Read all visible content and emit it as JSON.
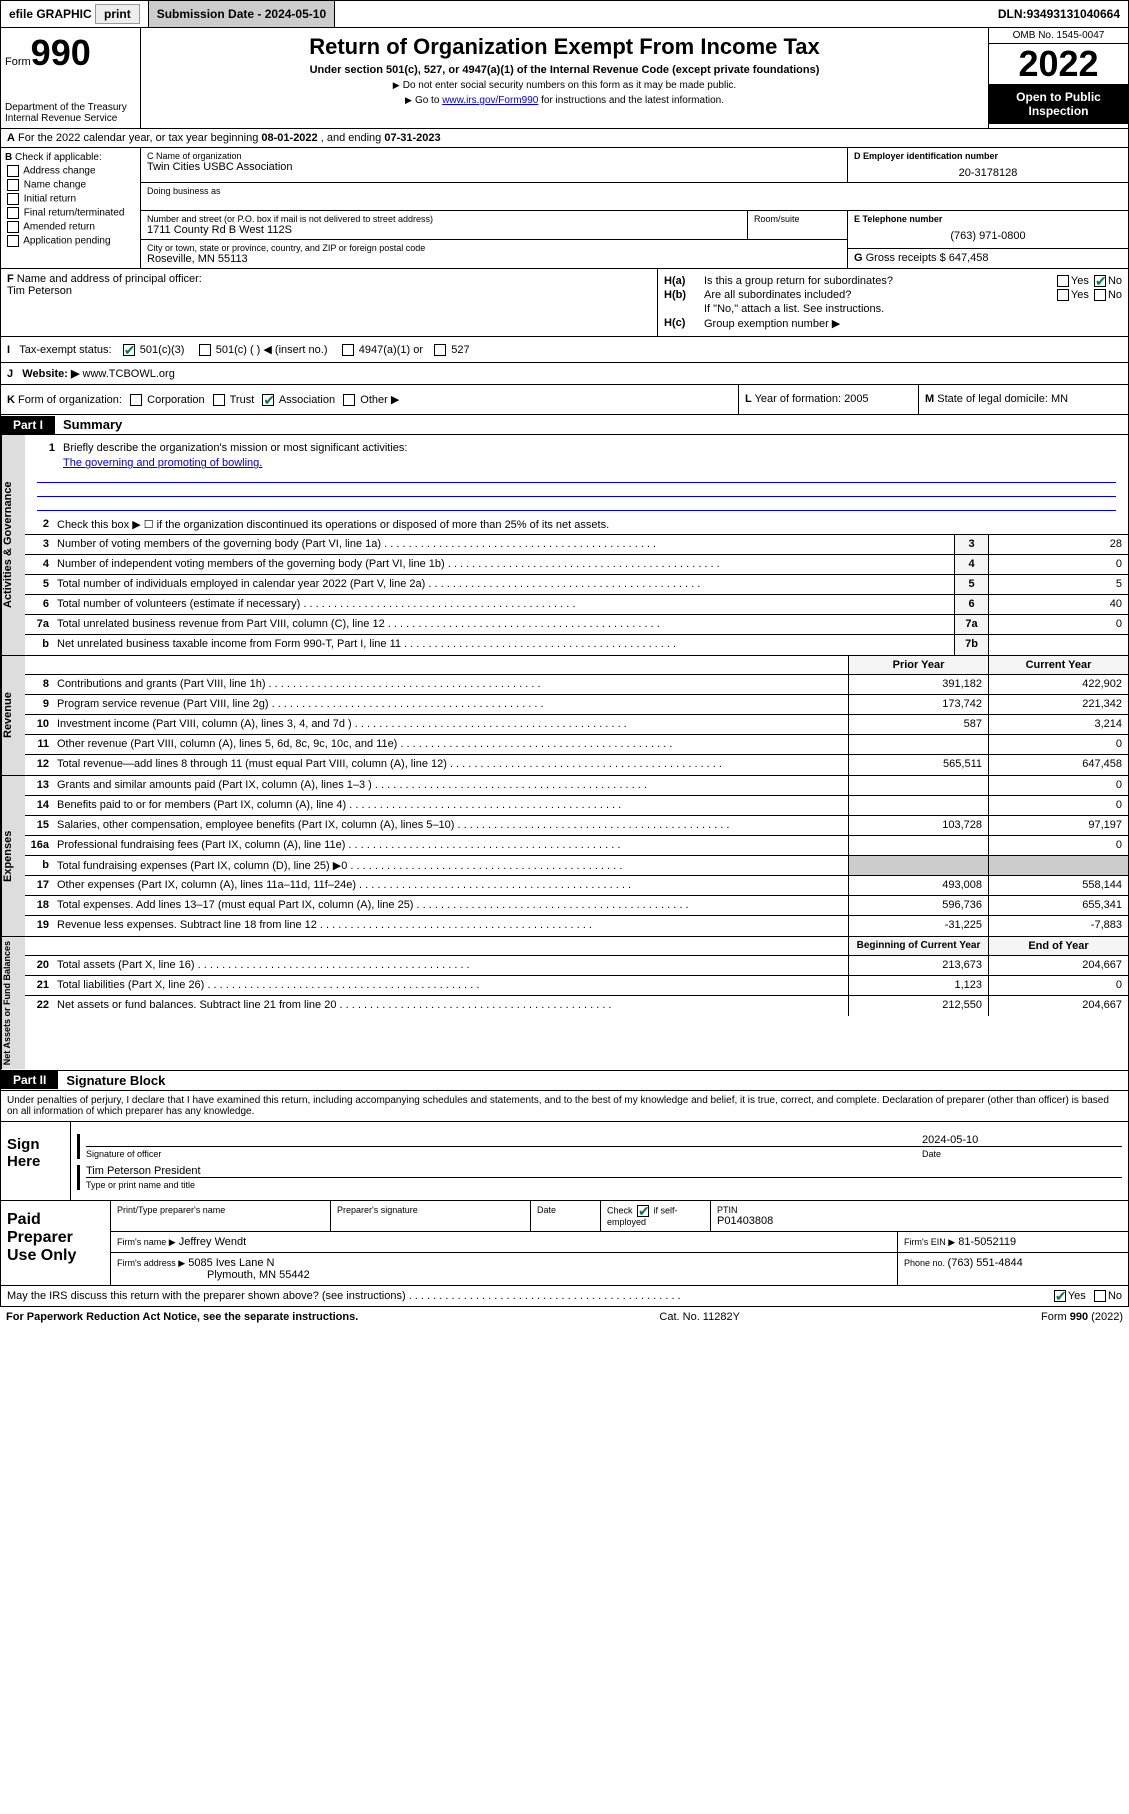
{
  "topbar": {
    "efile": "efile GRAPHIC",
    "print": "print",
    "submission_label": "Submission Date - ",
    "submission_date": "2024-05-10",
    "dln_label": "DLN: ",
    "dln": "93493131040664"
  },
  "header": {
    "form_prefix": "Form",
    "form_number": "990",
    "dept": "Department of the Treasury",
    "irs": "Internal Revenue Service",
    "title": "Return of Organization Exempt From Income Tax",
    "subtitle": "Under section 501(c), 527, or 4947(a)(1) of the Internal Revenue Code (except private foundations)",
    "note1": "Do not enter social security numbers on this form as it may be made public.",
    "note2_pre": "Go to ",
    "note2_link": "www.irs.gov/Form990",
    "note2_post": " for instructions and the latest information.",
    "omb": "OMB No. 1545-0047",
    "year": "2022",
    "open_public": "Open to Public Inspection"
  },
  "row_a": {
    "label": "A",
    "text_pre": "For the 2022 calendar year, or tax year beginning ",
    "begin": "08-01-2022",
    "mid": " , and ending ",
    "end": "07-31-2023"
  },
  "section_b": {
    "label": "B",
    "check_label": "Check if applicable:",
    "opts": [
      "Address change",
      "Name change",
      "Initial return",
      "Final return/terminated",
      "Amended return",
      "Application pending"
    ]
  },
  "section_c": {
    "name_label": "C Name of organization",
    "name": "Twin Cities USBC Association",
    "dba_label": "Doing business as",
    "dba": "",
    "street_label": "Number and street (or P.O. box if mail is not delivered to street address)",
    "street": "1711 County Rd B West 112S",
    "suite_label": "Room/suite",
    "suite": "",
    "city_label": "City or town, state or province, country, and ZIP or foreign postal code",
    "city": "Roseville, MN  55113"
  },
  "section_d": {
    "label": "D Employer identification number",
    "ein": "20-3178128"
  },
  "section_e": {
    "label": "E Telephone number",
    "phone": "(763) 971-0800"
  },
  "section_g": {
    "label": "G",
    "text": "Gross receipts $ ",
    "amount": "647,458"
  },
  "section_f": {
    "label": "F",
    "text": "Name and address of principal officer:",
    "name": "Tim Peterson"
  },
  "section_h": {
    "ha_label": "H(a)",
    "ha_text": "Is this a group return for subordinates?",
    "ha_yes": "Yes",
    "ha_no": "No",
    "hb_label": "H(b)",
    "hb_text": "Are all subordinates included?",
    "hb_yes": "Yes",
    "hb_no": "No",
    "hb_note": "If \"No,\" attach a list. See instructions.",
    "hc_label": "H(c)",
    "hc_text": "Group exemption number ▶"
  },
  "row_i": {
    "label": "I",
    "text": "Tax-exempt status:",
    "opt1": "501(c)(3)",
    "opt2": "501(c) (  ) ◀ (insert no.)",
    "opt3": "4947(a)(1) or",
    "opt4": "527"
  },
  "row_j": {
    "label": "J",
    "text": "Website: ▶",
    "url": "www.TCBOWL.org"
  },
  "row_k": {
    "label": "K",
    "text": "Form of organization:",
    "opts": [
      "Corporation",
      "Trust",
      "Association",
      "Other ▶"
    ],
    "l_label": "L",
    "l_text": "Year of formation: ",
    "l_val": "2005",
    "m_label": "M",
    "m_text": "State of legal domicile: ",
    "m_val": "MN"
  },
  "part1": {
    "hdr": "Part I",
    "title": "Summary"
  },
  "governance": {
    "side": "Activities & Governance",
    "q1_num": "1",
    "q1_text": "Briefly describe the organization's mission or most significant activities:",
    "q1_mission": "The governing and promoting of bowling.",
    "q2_num": "2",
    "q2_text": "Check this box ▶ ☐  if the organization discontinued its operations or disposed of more than 25% of its net assets.",
    "q3_num": "3",
    "q3_text": "Number of voting members of the governing body (Part VI, line 1a)",
    "q3_box": "3",
    "q3_val": "28",
    "q4_num": "4",
    "q4_text": "Number of independent voting members of the governing body (Part VI, line 1b)",
    "q4_box": "4",
    "q4_val": "0",
    "q5_num": "5",
    "q5_text": "Total number of individuals employed in calendar year 2022 (Part V, line 2a)",
    "q5_box": "5",
    "q5_val": "5",
    "q6_num": "6",
    "q6_text": "Total number of volunteers (estimate if necessary)",
    "q6_box": "6",
    "q6_val": "40",
    "q7a_num": "7a",
    "q7a_text": "Total unrelated business revenue from Part VIII, column (C), line 12",
    "q7a_box": "7a",
    "q7a_val": "0",
    "q7b_num": "b",
    "q7b_text": "Net unrelated business taxable income from Form 990-T, Part I, line 11",
    "q7b_box": "7b",
    "q7b_val": ""
  },
  "col_headers": {
    "prior": "Prior Year",
    "current": "Current Year"
  },
  "revenue": {
    "side": "Revenue",
    "rows": [
      {
        "num": "8",
        "text": "Contributions and grants (Part VIII, line 1h)",
        "prior": "391,182",
        "current": "422,902"
      },
      {
        "num": "9",
        "text": "Program service revenue (Part VIII, line 2g)",
        "prior": "173,742",
        "current": "221,342"
      },
      {
        "num": "10",
        "text": "Investment income (Part VIII, column (A), lines 3, 4, and 7d )",
        "prior": "587",
        "current": "3,214"
      },
      {
        "num": "11",
        "text": "Other revenue (Part VIII, column (A), lines 5, 6d, 8c, 9c, 10c, and 11e)",
        "prior": "",
        "current": "0"
      },
      {
        "num": "12",
        "text": "Total revenue—add lines 8 through 11 (must equal Part VIII, column (A), line 12)",
        "prior": "565,511",
        "current": "647,458"
      }
    ]
  },
  "expenses": {
    "side": "Expenses",
    "rows": [
      {
        "num": "13",
        "text": "Grants and similar amounts paid (Part IX, column (A), lines 1–3 )",
        "prior": "",
        "current": "0"
      },
      {
        "num": "14",
        "text": "Benefits paid to or for members (Part IX, column (A), line 4)",
        "prior": "",
        "current": "0"
      },
      {
        "num": "15",
        "text": "Salaries, other compensation, employee benefits (Part IX, column (A), lines 5–10)",
        "prior": "103,728",
        "current": "97,197"
      },
      {
        "num": "16a",
        "text": "Professional fundraising fees (Part IX, column (A), line 11e)",
        "prior": "",
        "current": "0"
      },
      {
        "num": "b",
        "text": "Total fundraising expenses (Part IX, column (D), line 25) ▶0",
        "prior": "shaded",
        "current": "shaded"
      },
      {
        "num": "17",
        "text": "Other expenses (Part IX, column (A), lines 11a–11d, 11f–24e)",
        "prior": "493,008",
        "current": "558,144"
      },
      {
        "num": "18",
        "text": "Total expenses. Add lines 13–17 (must equal Part IX, column (A), line 25)",
        "prior": "596,736",
        "current": "655,341"
      },
      {
        "num": "19",
        "text": "Revenue less expenses. Subtract line 18 from line 12",
        "prior": "-31,225",
        "current": "-7,883"
      }
    ]
  },
  "netassets_headers": {
    "begin": "Beginning of Current Year",
    "end": "End of Year"
  },
  "netassets": {
    "side": "Net Assets or Fund Balances",
    "rows": [
      {
        "num": "20",
        "text": "Total assets (Part X, line 16)",
        "prior": "213,673",
        "current": "204,667"
      },
      {
        "num": "21",
        "text": "Total liabilities (Part X, line 26)",
        "prior": "1,123",
        "current": "0"
      },
      {
        "num": "22",
        "text": "Net assets or fund balances. Subtract line 21 from line 20",
        "prior": "212,550",
        "current": "204,667"
      }
    ]
  },
  "part2": {
    "hdr": "Part II",
    "title": "Signature Block",
    "decl": "Under penalties of perjury, I declare that I have examined this return, including accompanying schedules and statements, and to the best of my knowledge and belief, it is true, correct, and complete. Declaration of preparer (other than officer) is based on all information of which preparer has any knowledge."
  },
  "sign": {
    "side": "Sign Here",
    "sig_label": "Signature of officer",
    "date_label": "Date",
    "date": "2024-05-10",
    "name": "Tim Peterson  President",
    "name_label": "Type or print name and title"
  },
  "prep": {
    "side": "Paid Preparer Use Only",
    "h1": "Print/Type preparer's name",
    "h2": "Preparer's signature",
    "h3": "Date",
    "h4_pre": "Check",
    "h4_post": "if self-employed",
    "h5": "PTIN",
    "ptin": "P01403808",
    "firm_name_label": "Firm's name    ▶",
    "firm_name": "Jeffrey Wendt",
    "firm_ein_label": "Firm's EIN ▶",
    "firm_ein": "81-5052119",
    "firm_addr_label": "Firm's address ▶",
    "firm_addr1": "5085 Ives Lane N",
    "firm_addr2": "Plymouth, MN  55442",
    "firm_phone_label": "Phone no. ",
    "firm_phone": "(763) 551-4844"
  },
  "footer": {
    "discuss": "May the IRS discuss this return with the preparer shown above? (see instructions)",
    "yes": "Yes",
    "no": "No",
    "paperwork": "For Paperwork Reduction Act Notice, see the separate instructions.",
    "cat": "Cat. No. 11282Y",
    "form": "Form 990 (2022)"
  }
}
